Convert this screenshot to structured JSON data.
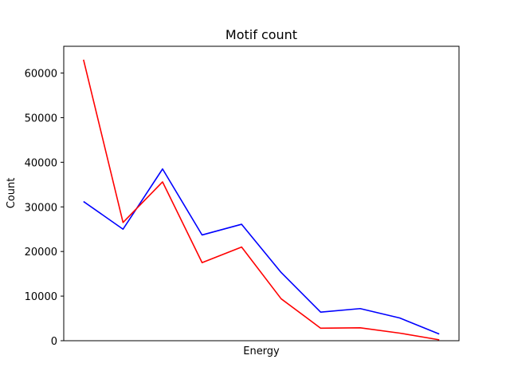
{
  "chart_data": {
    "type": "line",
    "title": "Motif count",
    "xlabel": "Energy",
    "ylabel": "Count",
    "x": [
      1,
      2,
      3,
      4,
      5,
      6,
      7,
      8,
      9,
      10
    ],
    "xticks_visible": false,
    "ylim": [
      0,
      66000
    ],
    "yticks": [
      0,
      10000,
      20000,
      30000,
      40000,
      50000,
      60000
    ],
    "ytick_labels": [
      "0",
      "10000",
      "20000",
      "30000",
      "40000",
      "50000",
      "60000"
    ],
    "grid": false,
    "series": [
      {
        "color": "#0000ff",
        "values": [
          31200,
          25000,
          38500,
          23700,
          26100,
          15300,
          6400,
          7200,
          5100,
          1500
        ]
      },
      {
        "color": "#ff0000",
        "values": [
          63000,
          26500,
          35600,
          17500,
          21000,
          9400,
          2800,
          2900,
          1700,
          200
        ]
      }
    ]
  }
}
